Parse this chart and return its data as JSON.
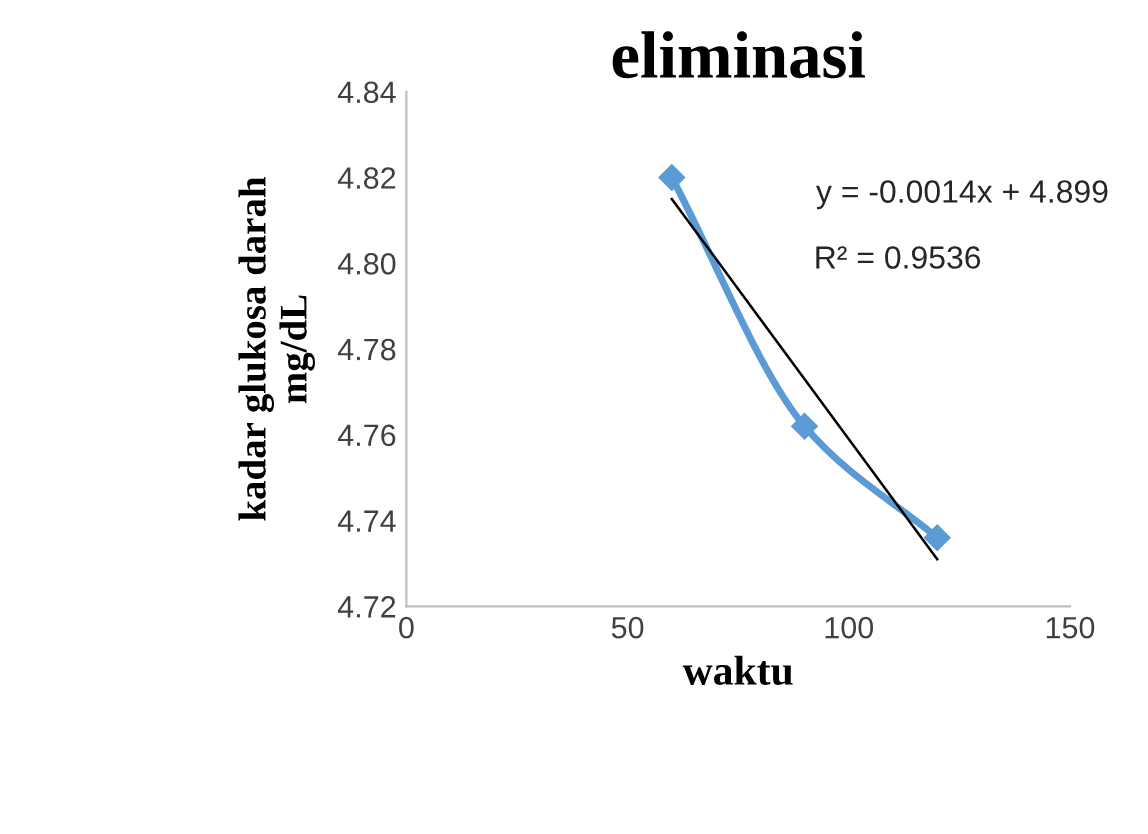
{
  "chart_data": {
    "type": "line",
    "title": "eliminasi",
    "xlabel": "waktu",
    "ylabel": "kadar glukosa darah\nmg/dL",
    "xlim": [
      0,
      150
    ],
    "xticks": [
      0,
      50,
      100,
      150
    ],
    "ylim": [
      4.72,
      4.84
    ],
    "yticks": [
      {
        "value": 4.72,
        "label": "4.72"
      },
      {
        "value": 4.74,
        "label": "4.74"
      },
      {
        "value": 4.76,
        "label": "4.76"
      },
      {
        "value": 4.78,
        "label": "4.78"
      },
      {
        "value": 4.8,
        "label": "4.80"
      },
      {
        "value": 4.82,
        "label": "4.82"
      },
      {
        "value": 4.84,
        "label": "4.84"
      }
    ],
    "grid": false,
    "legend": false,
    "series": [
      {
        "color": "#5b9bd5",
        "marker": "diamond",
        "x": [
          60,
          90,
          120
        ],
        "values": [
          4.82,
          4.762,
          4.736
        ]
      },
      {
        "color": "#000000",
        "marker": "none",
        "x": [
          60,
          120
        ],
        "values": [
          4.815,
          4.731
        ]
      }
    ],
    "annotations": [
      "y = -0.0014x + 4.899",
      "R² = 0.9536"
    ]
  }
}
